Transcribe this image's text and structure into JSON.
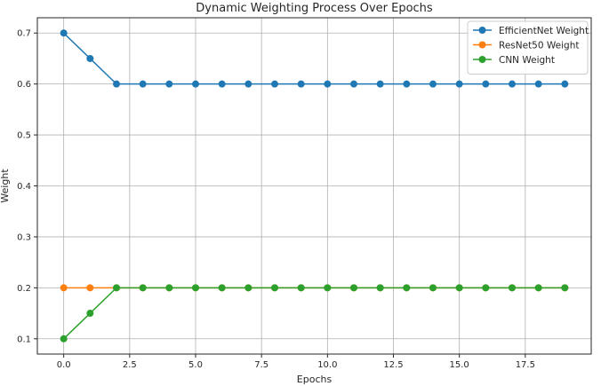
{
  "chart_data": {
    "type": "line",
    "title": "Dynamic Weighting Process Over Epochs",
    "xlabel": "Epochs",
    "ylabel": "Weight",
    "x": [
      0,
      1,
      2,
      3,
      4,
      5,
      6,
      7,
      8,
      9,
      10,
      11,
      12,
      13,
      14,
      15,
      16,
      17,
      18,
      19
    ],
    "xlim": [
      -1.0,
      20.0
    ],
    "ylim": [
      0.07,
      0.73
    ],
    "xticks": [
      0.0,
      2.5,
      5.0,
      7.5,
      10.0,
      12.5,
      15.0,
      17.5
    ],
    "xtick_labels": [
      "0.0",
      "2.5",
      "5.0",
      "7.5",
      "10.0",
      "12.5",
      "15.0",
      "17.5"
    ],
    "yticks": [
      0.1,
      0.2,
      0.3,
      0.4,
      0.5,
      0.6,
      0.7
    ],
    "ytick_labels": [
      "0.1",
      "0.2",
      "0.3",
      "0.4",
      "0.5",
      "0.6",
      "0.7"
    ],
    "grid": true,
    "legend_position": "top-right",
    "series": [
      {
        "name": "EfficientNet Weight",
        "color": "#1f77b4",
        "marker": "circle",
        "values": [
          0.7,
          0.65,
          0.6,
          0.6,
          0.6,
          0.6,
          0.6,
          0.6,
          0.6,
          0.6,
          0.6,
          0.6,
          0.6,
          0.6,
          0.6,
          0.6,
          0.6,
          0.6,
          0.6,
          0.6
        ]
      },
      {
        "name": "ResNet50 Weight",
        "color": "#ff7f0e",
        "marker": "circle",
        "values": [
          0.2,
          0.2,
          0.2,
          0.2,
          0.2,
          0.2,
          0.2,
          0.2,
          0.2,
          0.2,
          0.2,
          0.2,
          0.2,
          0.2,
          0.2,
          0.2,
          0.2,
          0.2,
          0.2,
          0.2
        ]
      },
      {
        "name": "CNN Weight",
        "color": "#2ca02c",
        "marker": "circle",
        "values": [
          0.1,
          0.15,
          0.2,
          0.2,
          0.2,
          0.2,
          0.2,
          0.2,
          0.2,
          0.2,
          0.2,
          0.2,
          0.2,
          0.2,
          0.2,
          0.2,
          0.2,
          0.2,
          0.2,
          0.2
        ]
      }
    ]
  }
}
